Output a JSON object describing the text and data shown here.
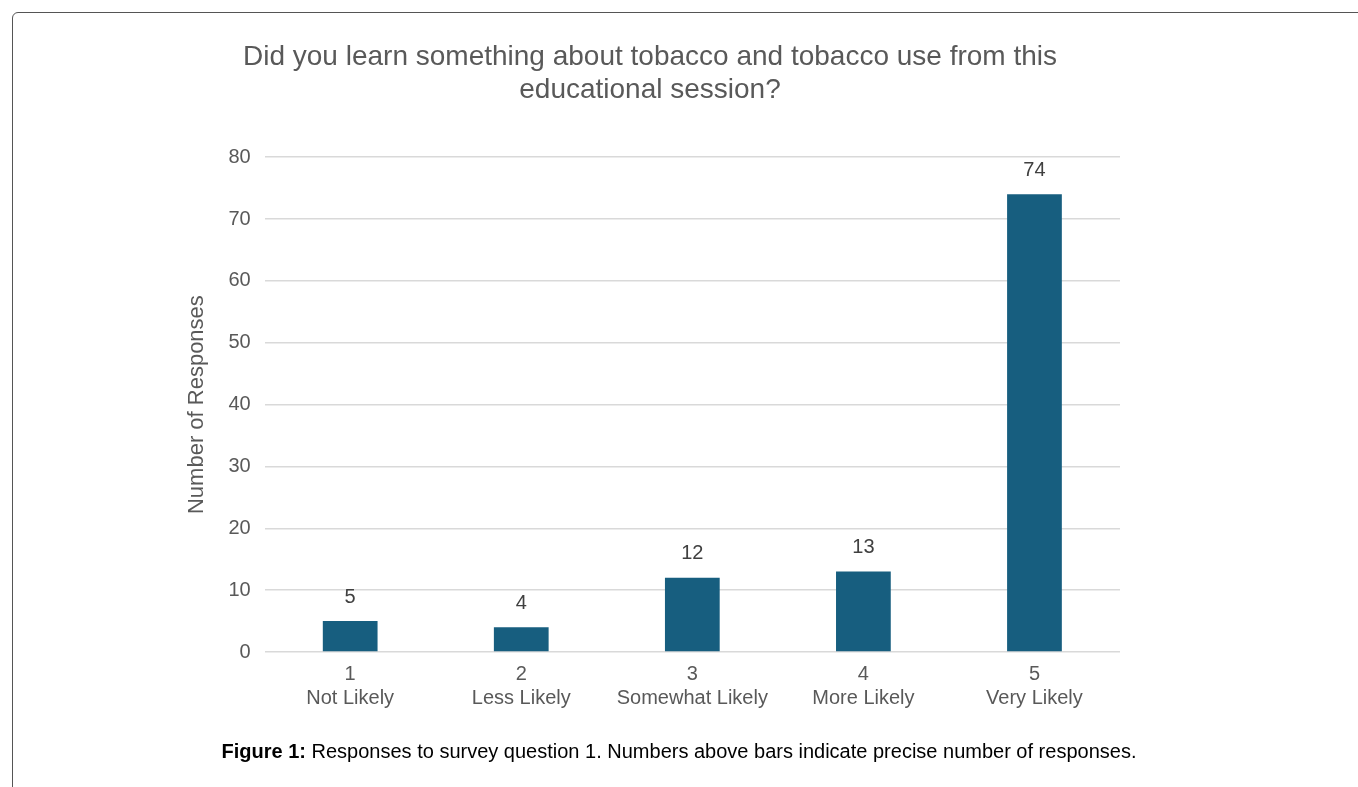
{
  "chart_data": {
    "type": "bar",
    "title": "Did you learn something about tobacco and tobacco use from this educational session?",
    "ylabel": "Number of Responses",
    "categories": [
      "1\nNot Likely",
      "2\nLess Likely",
      "3\nSomewhat Likely",
      "4\nMore Likely",
      "5\nVery Likely"
    ],
    "values": [
      5,
      4,
      12,
      13,
      74
    ],
    "color": "#175e7f",
    "ylim": [
      0,
      80
    ],
    "yticks": [
      0,
      10,
      20,
      30,
      40,
      50,
      60,
      70,
      80
    ],
    "grid": "y",
    "legend": false,
    "data_labels": true,
    "annotations": [
      "Figure 1: Responses to survey question 1. Numbers above bars indicate precise number of responses."
    ]
  }
}
